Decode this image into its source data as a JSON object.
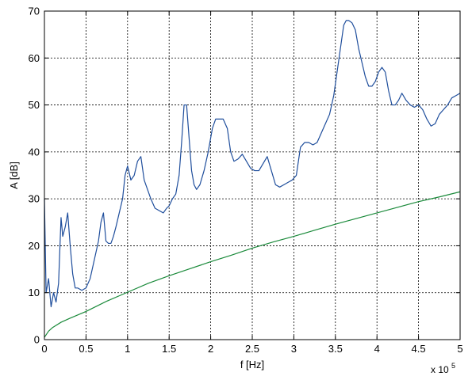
{
  "chart_data": {
    "type": "line",
    "title": "",
    "xlabel": "f [Hz]",
    "ylabel": "A [dB]",
    "x_multiplier_label": "x 10",
    "x_multiplier_exponent": "5",
    "xlim": [
      0,
      5
    ],
    "ylim": [
      0,
      70
    ],
    "grid": true,
    "x_ticks": [
      "0",
      "0.5",
      "1",
      "1.5",
      "2",
      "2.5",
      "3",
      "3.5",
      "4",
      "4.5",
      "5"
    ],
    "y_ticks": [
      "0",
      "10",
      "20",
      "30",
      "40",
      "50",
      "60",
      "70"
    ],
    "series": [
      {
        "color": "#1f4e9c",
        "x": [
          0,
          0.02,
          0.05,
          0.08,
          0.11,
          0.14,
          0.17,
          0.2,
          0.22,
          0.25,
          0.28,
          0.31,
          0.34,
          0.37,
          0.4,
          0.45,
          0.5,
          0.55,
          0.6,
          0.65,
          0.68,
          0.71,
          0.74,
          0.77,
          0.8,
          0.83,
          0.86,
          0.9,
          0.94,
          0.97,
          1.0,
          1.04,
          1.08,
          1.12,
          1.16,
          1.2,
          1.24,
          1.28,
          1.33,
          1.38,
          1.43,
          1.47,
          1.5,
          1.54,
          1.58,
          1.62,
          1.65,
          1.68,
          1.71,
          1.74,
          1.77,
          1.8,
          1.83,
          1.87,
          1.92,
          1.97,
          2.02,
          2.06,
          2.1,
          2.15,
          2.2,
          2.24,
          2.28,
          2.33,
          2.38,
          2.43,
          2.48,
          2.53,
          2.58,
          2.63,
          2.68,
          2.73,
          2.78,
          2.83,
          2.88,
          2.93,
          2.98,
          3.03,
          3.08,
          3.13,
          3.18,
          3.23,
          3.28,
          3.33,
          3.38,
          3.43,
          3.48,
          3.52,
          3.56,
          3.6,
          3.63,
          3.66,
          3.7,
          3.74,
          3.78,
          3.82,
          3.86,
          3.9,
          3.94,
          3.98,
          4.02,
          4.06,
          4.1,
          4.14,
          4.18,
          4.22,
          4.26,
          4.3,
          4.35,
          4.4,
          4.45,
          4.5,
          4.55,
          4.6,
          4.65,
          4.7,
          4.75,
          4.8,
          4.85,
          4.9,
          4.95,
          5.0
        ],
        "values": [
          30,
          10,
          13,
          7,
          10,
          8,
          12,
          26,
          22,
          24,
          27,
          20,
          14,
          11,
          11,
          10.5,
          11,
          13,
          17,
          21,
          25,
          27,
          21,
          20.5,
          20.5,
          22,
          24,
          27,
          30,
          35,
          37,
          34,
          35,
          38,
          39,
          34,
          32,
          30,
          28,
          27.5,
          27,
          28,
          28.5,
          30,
          31,
          35,
          42,
          50,
          50,
          43,
          36,
          33,
          32,
          33,
          36,
          40,
          45,
          47,
          47,
          47,
          45,
          40,
          38,
          38.5,
          39.5,
          38,
          36.5,
          36,
          36,
          37.5,
          39,
          36,
          33,
          32.5,
          33,
          33.5,
          34,
          35,
          41,
          42,
          42,
          41.5,
          42,
          44,
          46,
          48,
          52,
          57,
          62,
          67,
          68,
          68,
          67.5,
          66,
          62,
          59,
          56,
          54,
          54,
          55,
          57,
          58,
          57,
          53,
          50,
          50,
          51,
          52.5,
          51,
          50,
          49.5,
          50,
          49,
          47,
          45.5,
          46,
          48,
          49,
          50,
          51.5,
          52,
          52.5
        ]
      },
      {
        "color": "#1a8a3a",
        "x": [
          0,
          0.05,
          0.1,
          0.2,
          0.3,
          0.5,
          0.75,
          1.0,
          1.25,
          1.5,
          1.75,
          2.0,
          2.25,
          2.5,
          2.75,
          3.0,
          3.25,
          3.5,
          3.75,
          4.0,
          4.25,
          4.5,
          4.75,
          5.0
        ],
        "values": [
          0.5,
          1.8,
          2.6,
          3.7,
          4.5,
          6.0,
          8.2,
          10.1,
          12.0,
          13.6,
          15.1,
          16.6,
          18.0,
          19.5,
          20.8,
          22.0,
          23.3,
          24.6,
          25.8,
          27.0,
          28.2,
          29.4,
          30.4,
          31.5
        ]
      }
    ]
  }
}
